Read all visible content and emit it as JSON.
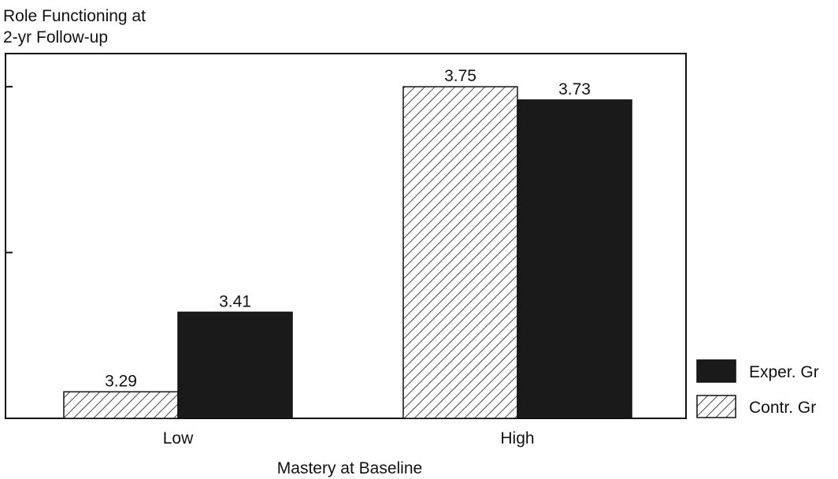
{
  "chart_data": {
    "type": "bar",
    "title": "",
    "ylabel_lines": [
      "Role Functioning at",
      "2-yr Follow-up"
    ],
    "xlabel": "Mastery at Baseline",
    "categories": [
      "Low",
      "High"
    ],
    "series": [
      {
        "name": "Contr. Gr",
        "pattern": "hatched",
        "color": "#1a1a1a",
        "values": [
          3.29,
          3.75
        ],
        "labels": [
          "3.29",
          "3.75"
        ]
      },
      {
        "name": "Exper. Gr",
        "pattern": "solid",
        "color": "#1a1a1a",
        "values": [
          3.41,
          3.73
        ],
        "labels": [
          "3.41",
          "3.73"
        ]
      }
    ],
    "ylim": [
      3.25,
      3.8
    ],
    "ytick_values": [
      3.5,
      3.75
    ],
    "yticks_labeled": false,
    "grid": false,
    "legend": {
      "placement": "right",
      "order": [
        "Exper. Gr",
        "Contr. Gr"
      ]
    }
  }
}
